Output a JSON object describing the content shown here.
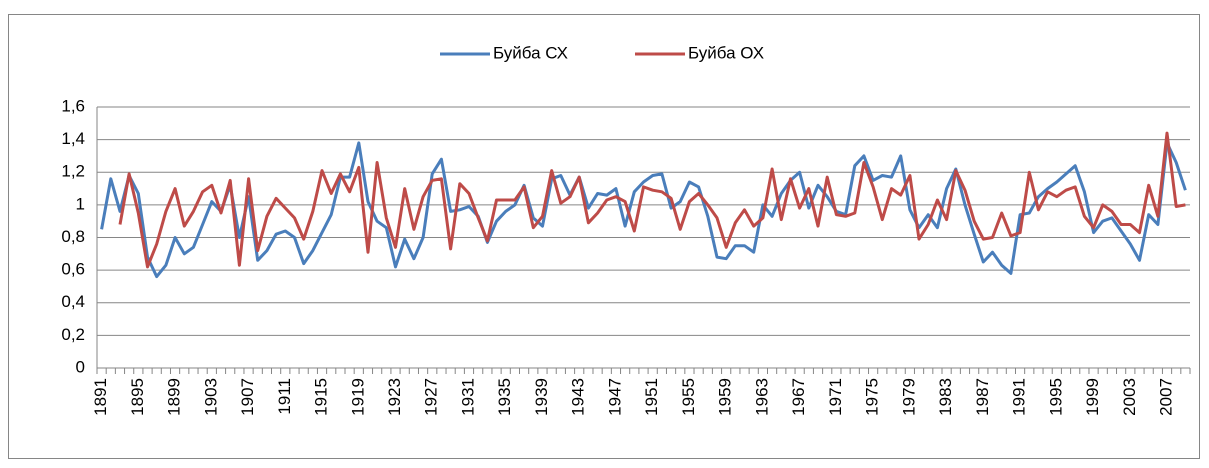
{
  "chart_data": {
    "type": "line",
    "categories": [
      "1891",
      null,
      null,
      null,
      "1895",
      null,
      null,
      null,
      "1899",
      null,
      null,
      null,
      "1903",
      null,
      null,
      null,
      "1907",
      null,
      null,
      null,
      "1911",
      null,
      null,
      null,
      "1915",
      null,
      null,
      null,
      "1919",
      null,
      null,
      null,
      "1923",
      null,
      null,
      null,
      "1927",
      null,
      null,
      null,
      "1931",
      null,
      null,
      null,
      "1935",
      null,
      null,
      null,
      "1939",
      null,
      null,
      null,
      "1943",
      null,
      null,
      null,
      "1947",
      null,
      null,
      null,
      "1951",
      null,
      null,
      null,
      "1955",
      null,
      null,
      null,
      "1959",
      null,
      null,
      null,
      "1963",
      null,
      null,
      null,
      "1967",
      null,
      null,
      null,
      "1971",
      null,
      null,
      null,
      "1975",
      null,
      null,
      null,
      "1979",
      null,
      null,
      null,
      "1983",
      null,
      null,
      null,
      "1987",
      null,
      null,
      null,
      "1991",
      null,
      null,
      null,
      "1995",
      null,
      null,
      null,
      "1999",
      null,
      null,
      null,
      "2003",
      null,
      null,
      null,
      "2007",
      null,
      null
    ],
    "series": [
      {
        "name": "Буйба СХ",
        "color": "#4a7ebb",
        "values": [
          0.85,
          1.16,
          0.96,
          1.18,
          1.07,
          0.68,
          0.56,
          0.63,
          0.8,
          0.7,
          0.74,
          0.88,
          1.02,
          0.96,
          1.12,
          0.8,
          1.05,
          0.66,
          0.72,
          0.82,
          0.84,
          0.8,
          0.64,
          0.72,
          0.83,
          0.94,
          1.17,
          1.17,
          1.38,
          1.02,
          0.9,
          0.86,
          0.62,
          0.79,
          0.67,
          0.8,
          1.19,
          1.28,
          0.96,
          0.97,
          0.99,
          0.93,
          0.77,
          0.9,
          0.96,
          1.0,
          1.12,
          0.92,
          0.87,
          1.16,
          1.18,
          1.06,
          1.17,
          0.98,
          1.07,
          1.06,
          1.1,
          0.87,
          1.08,
          1.14,
          1.18,
          1.19,
          0.98,
          1.02,
          1.14,
          1.11,
          0.93,
          0.68,
          0.67,
          0.75,
          0.75,
          0.71,
          1.0,
          0.93,
          1.07,
          1.15,
          1.2,
          0.98,
          1.12,
          1.05,
          0.96,
          0.94,
          1.24,
          1.3,
          1.15,
          1.18,
          1.17,
          1.3,
          0.97,
          0.86,
          0.94,
          0.86,
          1.1,
          1.22,
          1.0,
          0.82,
          0.65,
          0.71,
          0.63,
          0.58,
          0.94,
          0.95,
          1.05,
          1.1,
          1.14,
          1.19,
          1.24,
          1.08,
          0.83,
          0.9,
          0.92,
          0.84,
          0.76,
          0.66,
          0.94,
          0.88,
          1.38,
          1.26,
          1.09
        ]
      },
      {
        "name": "Буйба ОХ",
        "color": "#be4b48",
        "values": [
          null,
          null,
          0.88,
          1.19,
          0.95,
          0.62,
          0.76,
          0.96,
          1.1,
          0.87,
          0.96,
          1.08,
          1.12,
          0.95,
          1.15,
          0.63,
          1.16,
          0.72,
          0.93,
          1.04,
          0.98,
          0.92,
          0.79,
          0.96,
          1.21,
          1.07,
          1.19,
          1.08,
          1.23,
          0.71,
          1.26,
          0.92,
          0.74,
          1.1,
          0.85,
          1.05,
          1.15,
          1.16,
          0.73,
          1.13,
          1.07,
          0.92,
          0.78,
          1.03,
          1.03,
          1.03,
          1.11,
          0.86,
          0.93,
          1.21,
          1.01,
          1.05,
          1.17,
          0.89,
          0.95,
          1.03,
          1.05,
          1.02,
          0.84,
          1.11,
          1.09,
          1.08,
          1.04,
          0.85,
          1.02,
          1.07,
          1.0,
          0.92,
          0.74,
          0.89,
          0.97,
          0.87,
          0.92,
          1.22,
          0.91,
          1.16,
          0.98,
          1.1,
          0.87,
          1.17,
          0.94,
          0.93,
          0.95,
          1.26,
          1.11,
          0.91,
          1.1,
          1.06,
          1.18,
          0.79,
          0.88,
          1.03,
          0.91,
          1.21,
          1.09,
          0.9,
          0.79,
          0.8,
          0.95,
          0.81,
          0.83,
          1.2,
          0.97,
          1.08,
          1.05,
          1.09,
          1.11,
          0.93,
          0.86,
          1.0,
          0.96,
          0.88,
          0.88,
          0.83,
          1.12,
          0.93,
          1.44,
          0.99,
          1.0
        ]
      }
    ],
    "ylim": [
      0,
      1.6
    ],
    "yticks": [
      0,
      {
        "value": 0.2,
        "label": "0,2"
      },
      {
        "value": 0.4,
        "label": "0,4"
      },
      {
        "value": 0.6,
        "label": "0,6"
      },
      {
        "value": 0.8,
        "label": "0,8"
      },
      1,
      {
        "value": 1.2,
        "label": "1,2"
      },
      {
        "value": 1.4,
        "label": "1,4"
      },
      {
        "value": 1.6,
        "label": "1,6"
      }
    ],
    "grid": true,
    "legend": "top"
  }
}
